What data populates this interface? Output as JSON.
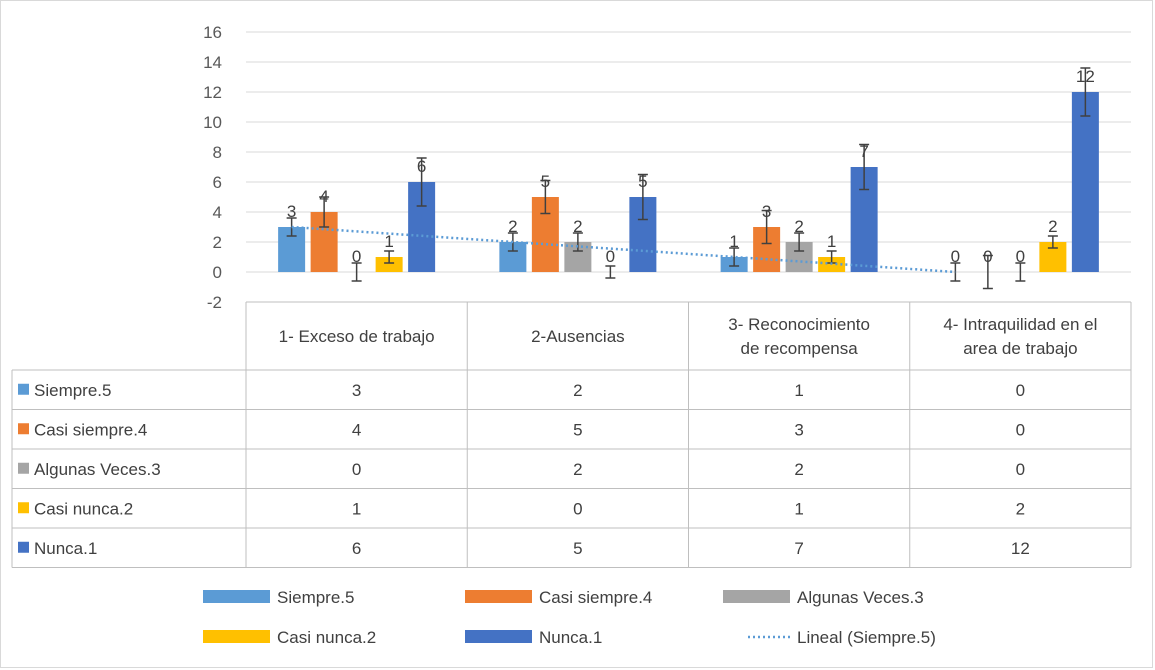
{
  "chart_data": {
    "type": "bar",
    "title": "",
    "categories": [
      "1- Exceso de trabajo",
      "2-Ausencias",
      "3- Reconocimiento de recompensa",
      "4- Intraquilidad en el area de trabajo"
    ],
    "category_lines": [
      [
        "1- Exceso de trabajo"
      ],
      [
        "2-Ausencias"
      ],
      [
        "3- Reconocimiento",
        "de recompensa"
      ],
      [
        "4- Intraquilidad en el",
        "area de trabajo"
      ]
    ],
    "series": [
      {
        "name": "Siempre.5",
        "color": "#5b9bd5",
        "values": [
          3,
          2,
          1,
          0
        ]
      },
      {
        "name": "Casi siempre.4",
        "color": "#ed7d31",
        "values": [
          4,
          5,
          3,
          0
        ]
      },
      {
        "name": "Algunas Veces.3",
        "color": "#a5a5a5",
        "values": [
          0,
          2,
          2,
          0
        ]
      },
      {
        "name": "Casi nunca.2",
        "color": "#ffc000",
        "values": [
          1,
          0,
          1,
          2
        ]
      },
      {
        "name": "Nunca.1",
        "color": "#4472c4",
        "values": [
          6,
          5,
          7,
          12
        ]
      }
    ],
    "error_bars": {
      "color": "#404040",
      "series": [
        [
          0.6,
          0.6,
          0.6,
          0.6
        ],
        [
          1.0,
          1.1,
          1.1,
          1.1
        ],
        [
          0.6,
          0.6,
          0.6,
          0.6
        ],
        [
          0.4,
          0.4,
          0.4,
          0.4
        ],
        [
          1.6,
          1.5,
          1.5,
          1.6
        ]
      ]
    },
    "trendline": {
      "name": "Lineal (Siempre.5)",
      "series": "Siempre.5",
      "type": "linear",
      "color": "#5b9bd5"
    },
    "yticks": [
      -2,
      0,
      2,
      4,
      6,
      8,
      10,
      12,
      14,
      16
    ],
    "ylim": [
      -2,
      16
    ],
    "grid": true,
    "legend_position": "bottom",
    "data_table": true
  }
}
